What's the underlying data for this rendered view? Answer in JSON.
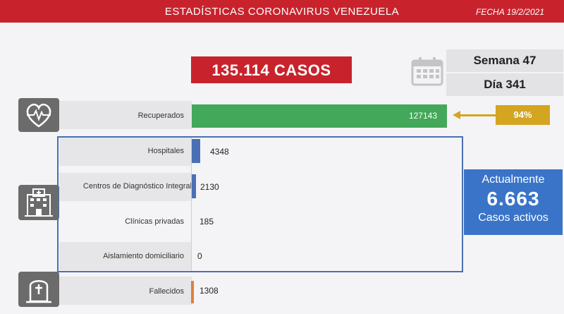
{
  "header": {
    "title": "ESTADÍSTICAS CORONAVIRUS VENEZUELA",
    "date": "FECHA 19/2/2021"
  },
  "total_cases": "135.114 CASOS",
  "calendar": {
    "week": "Semana 47",
    "day": "Día 341",
    "icon": "calendar-icon"
  },
  "recovered": {
    "icon": "heart-pulse-icon",
    "label": "Recuperados",
    "value": "127143",
    "percent": "94%",
    "bar_fraction": 1.0
  },
  "active_breakdown": {
    "icon": "hospital-icon",
    "items": [
      {
        "label": "Hospitales",
        "value": "4348",
        "bar_fraction": 0.034
      },
      {
        "label": "Centros de Diagnóstico Integral",
        "value": "2130",
        "bar_fraction": 0.017
      },
      {
        "label": "Clínicas privadas",
        "value": "185",
        "bar_fraction": 0.0015
      },
      {
        "label": "Aislamiento domiciliario",
        "value": "0",
        "bar_fraction": 0
      }
    ]
  },
  "active_summary": {
    "top": "Actualmente",
    "number": "6.663",
    "bottom": "Casos activos"
  },
  "deceased": {
    "icon": "tombstone-icon",
    "label": "Fallecidos",
    "value": "1308"
  },
  "colors": {
    "header_red": "#c8232c",
    "recovered_green": "#43a85a",
    "active_blue": "#4a6fb3",
    "percent_gold": "#d4a521",
    "deceased_orange": "#e07f3f"
  }
}
